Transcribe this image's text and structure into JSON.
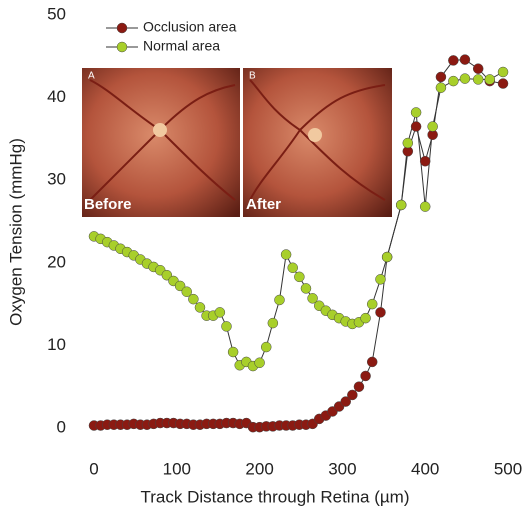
{
  "chart_data": {
    "type": "line",
    "xlabel": "Track Distance through Retina (µm)",
    "ylabel": "Oxygen Tension (mmHg)",
    "x": [
      0,
      8,
      16,
      24,
      32,
      40,
      48,
      56,
      64,
      72,
      80,
      88,
      96,
      104,
      112,
      120,
      128,
      136,
      144,
      152,
      160,
      168,
      176,
      184,
      192,
      200,
      208,
      216,
      224,
      232,
      240,
      248,
      256,
      264,
      272,
      280,
      288,
      296,
      304,
      312,
      320,
      328,
      336,
      346,
      354,
      371,
      379,
      389,
      400,
      409,
      419,
      434,
      448,
      464,
      478,
      494
    ],
    "series": [
      {
        "name": "Occlusion area",
        "color": "#8b1a12",
        "values": [
          0.3,
          0.3,
          0.4,
          0.4,
          0.4,
          0.4,
          0.5,
          0.4,
          0.4,
          0.5,
          0.6,
          0.6,
          0.6,
          0.5,
          0.5,
          0.4,
          0.4,
          0.5,
          0.5,
          0.5,
          0.6,
          0.6,
          0.5,
          0.6,
          0.1,
          0.1,
          0.2,
          0.2,
          0.3,
          0.3,
          0.3,
          0.4,
          0.4,
          0.5,
          1.1,
          1.5,
          2.0,
          2.6,
          3.2,
          4.0,
          5.0,
          6.3,
          8.0,
          14.0,
          20.7,
          27.0,
          33.5,
          36.5,
          32.3,
          35.5,
          42.5,
          44.5,
          44.6,
          43.5,
          42.0,
          41.7
        ]
      },
      {
        "name": "Normal area",
        "color": "#a8cf2a",
        "values": [
          23.2,
          22.9,
          22.5,
          22.1,
          21.7,
          21.3,
          20.9,
          20.4,
          19.9,
          19.5,
          19.1,
          18.5,
          17.8,
          17.2,
          16.5,
          15.6,
          14.6,
          13.6,
          13.6,
          14.0,
          12.3,
          9.2,
          7.6,
          8.0,
          7.5,
          7.9,
          9.8,
          12.7,
          15.5,
          21.0,
          19.4,
          18.3,
          16.9,
          15.7,
          14.8,
          14.2,
          13.7,
          13.3,
          12.9,
          12.6,
          12.8,
          13.3,
          15.0,
          18.0,
          20.7,
          27.0,
          34.5,
          38.2,
          26.8,
          36.5,
          41.2,
          42.0,
          42.3,
          42.2,
          42.2,
          43.1
        ]
      }
    ],
    "xlim": [
      0,
      500
    ],
    "xticks": [
      0,
      100,
      200,
      300,
      400,
      500
    ],
    "ylim": [
      0,
      50
    ],
    "yticks": [
      0,
      10,
      20,
      30,
      40,
      50
    ],
    "inset_labels": [
      "A",
      "B",
      "Before",
      "After"
    ]
  }
}
